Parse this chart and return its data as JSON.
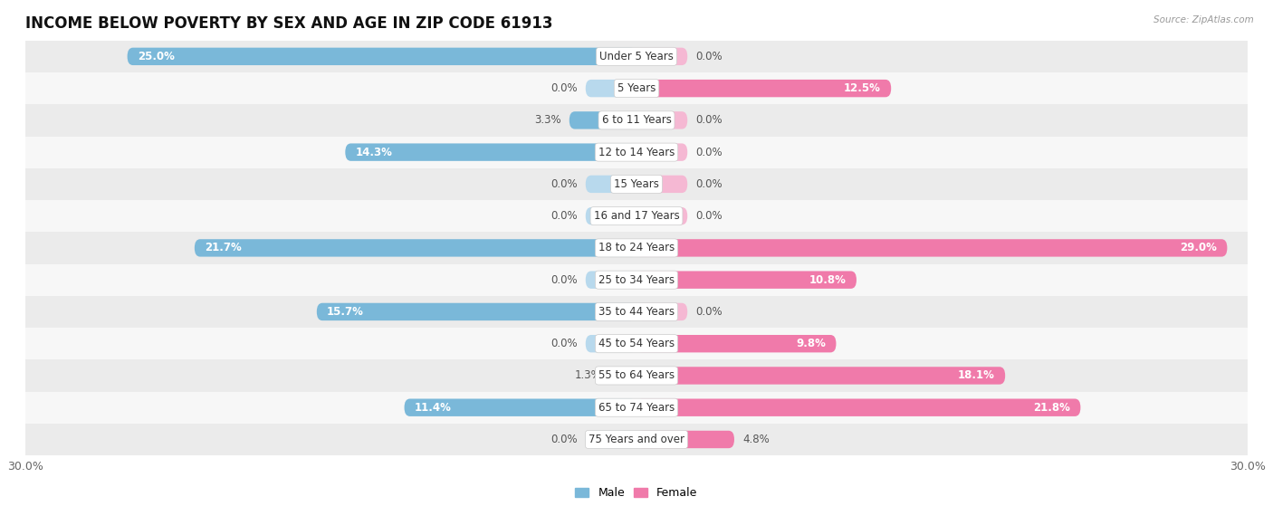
{
  "title": "INCOME BELOW POVERTY BY SEX AND AGE IN ZIP CODE 61913",
  "source": "Source: ZipAtlas.com",
  "categories": [
    "Under 5 Years",
    "5 Years",
    "6 to 11 Years",
    "12 to 14 Years",
    "15 Years",
    "16 and 17 Years",
    "18 to 24 Years",
    "25 to 34 Years",
    "35 to 44 Years",
    "45 to 54 Years",
    "55 to 64 Years",
    "65 to 74 Years",
    "75 Years and over"
  ],
  "male": [
    25.0,
    0.0,
    3.3,
    14.3,
    0.0,
    0.0,
    21.7,
    0.0,
    15.7,
    0.0,
    1.3,
    11.4,
    0.0
  ],
  "female": [
    0.0,
    12.5,
    0.0,
    0.0,
    0.0,
    0.0,
    29.0,
    10.8,
    0.0,
    9.8,
    18.1,
    21.8,
    4.8
  ],
  "male_color_full": "#7ab8d9",
  "male_color_stub": "#b8d9ed",
  "female_color_full": "#f07aaa",
  "female_color_stub": "#f5b8d3",
  "row_color_even": "#ebebeb",
  "row_color_odd": "#f7f7f7",
  "xlim": 30.0,
  "stub_size": 2.5,
  "title_fontsize": 12,
  "label_fontsize": 8.5,
  "tick_fontsize": 9,
  "legend_fontsize": 9,
  "bar_height": 0.55,
  "value_label_color": "#555555",
  "white_label_color": "#ffffff",
  "category_fontsize": 8.5
}
